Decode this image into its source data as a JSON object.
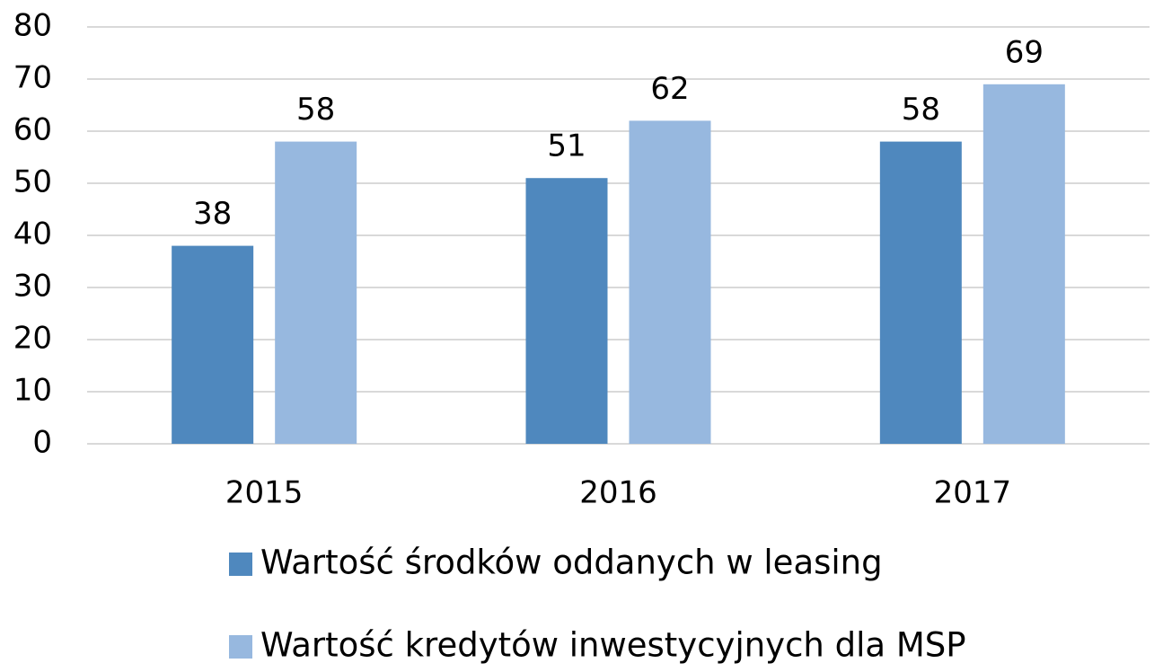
{
  "chart_data": {
    "type": "bar",
    "categories": [
      "2015",
      "2016",
      "2017"
    ],
    "series": [
      {
        "name": "Wartość środków oddanych w leasing",
        "color": "#4f88be",
        "values": [
          38,
          51,
          58
        ]
      },
      {
        "name": "Wartość kredytów inwestycyjnych dla MSP",
        "color": "#97b8df",
        "values": [
          58,
          62,
          69
        ]
      }
    ],
    "ylim": [
      0,
      80
    ],
    "yticks": [
      0,
      10,
      20,
      30,
      40,
      50,
      60,
      70,
      80
    ],
    "grid": true
  }
}
